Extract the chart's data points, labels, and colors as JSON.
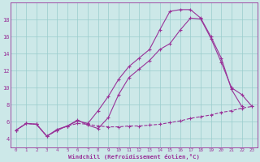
{
  "xlabel": "Windchill (Refroidissement éolien,°C)",
  "bg_color": "#cce8e8",
  "line_color": "#993399",
  "grid_color": "#99cccc",
  "xlim": [
    -0.5,
    23.5
  ],
  "ylim": [
    3.0,
    20.0
  ],
  "yticks": [
    4,
    6,
    8,
    10,
    12,
    14,
    16,
    18
  ],
  "xticks": [
    0,
    1,
    2,
    3,
    4,
    5,
    6,
    7,
    8,
    9,
    10,
    11,
    12,
    13,
    14,
    15,
    16,
    17,
    18,
    19,
    20,
    21,
    22,
    23
  ],
  "line1_x": [
    0,
    1,
    2,
    3,
    4,
    5,
    6,
    7,
    8,
    9,
    10,
    11,
    12,
    13,
    14,
    15,
    16,
    17,
    18,
    19,
    20,
    21,
    22,
    23
  ],
  "line1_y": [
    5.0,
    5.8,
    5.7,
    4.3,
    5.0,
    5.5,
    5.8,
    5.7,
    5.5,
    5.4,
    5.4,
    5.5,
    5.5,
    5.6,
    5.7,
    5.9,
    6.1,
    6.4,
    6.6,
    6.8,
    7.1,
    7.3,
    7.6,
    7.8
  ],
  "line2_x": [
    0,
    1,
    2,
    3,
    4,
    5,
    6,
    7,
    8,
    9,
    10,
    11,
    12,
    13,
    14,
    15,
    16,
    17,
    18,
    19,
    20,
    21,
    22,
    23
  ],
  "line2_y": [
    5.0,
    5.8,
    5.7,
    4.3,
    5.0,
    5.5,
    6.2,
    5.6,
    5.2,
    6.5,
    9.2,
    11.2,
    12.2,
    13.2,
    14.5,
    15.2,
    16.8,
    18.2,
    18.1,
    15.8,
    13.0,
    10.0,
    9.2,
    7.8
  ],
  "line3_x": [
    0,
    1,
    2,
    3,
    4,
    5,
    6,
    7,
    8,
    9,
    10,
    11,
    12,
    13,
    14,
    15,
    16,
    17,
    18,
    19,
    20,
    21,
    22
  ],
  "line3_y": [
    5.0,
    5.8,
    5.7,
    4.3,
    5.1,
    5.5,
    6.1,
    5.8,
    7.3,
    9.0,
    11.0,
    12.5,
    13.5,
    14.5,
    16.8,
    19.0,
    19.2,
    19.2,
    18.2,
    16.0,
    13.5,
    9.8,
    7.8
  ]
}
